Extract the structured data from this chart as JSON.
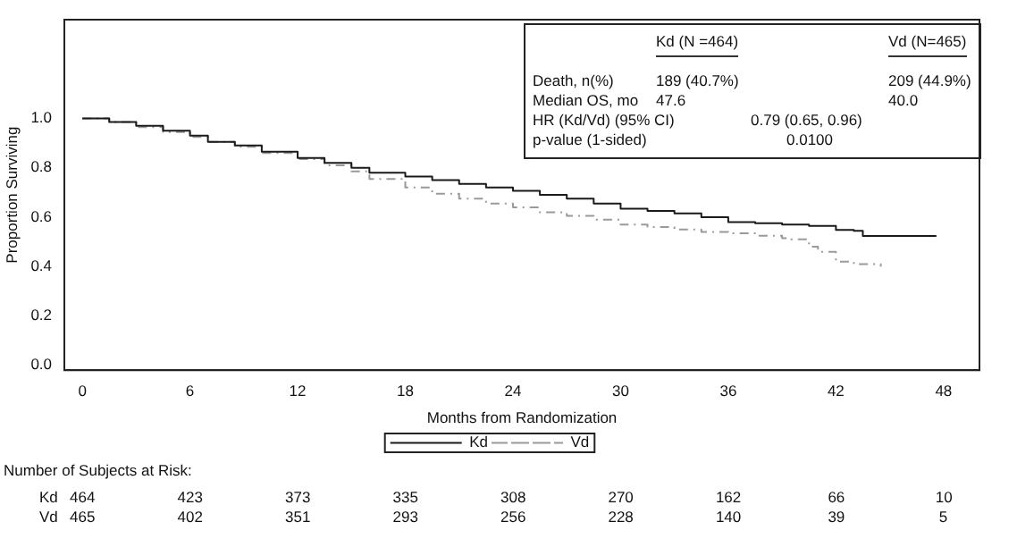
{
  "chart_data": {
    "type": "step",
    "xlabel": "Months from Randomization",
    "ylabel": "Proportion Surviving",
    "xlim": [
      -1,
      50
    ],
    "ylim": [
      -0.02,
      1.4
    ],
    "xticks": [
      0,
      6,
      12,
      18,
      24,
      30,
      36,
      42,
      48
    ],
    "yticks": [
      {
        "value": 0,
        "label": "0.0"
      },
      {
        "value": 0.2,
        "label": "0.2"
      },
      {
        "value": 0.4,
        "label": "0.4"
      },
      {
        "value": 0.6,
        "label": "0.6"
      },
      {
        "value": 0.8,
        "label": "0.8"
      },
      {
        "value": 1,
        "label": "1.0"
      }
    ],
    "grid": false,
    "legend": "bottom",
    "marker": "none",
    "series": [
      {
        "name": "Kd",
        "color": "#1a1a1a",
        "line_style": "solid",
        "x": [
          0,
          1.5,
          3,
          4.5,
          6,
          7,
          8.5,
          10,
          12,
          13.5,
          15,
          16,
          18,
          19.5,
          21,
          22.5,
          24,
          25.5,
          27,
          28.5,
          30,
          31.5,
          33,
          34.5,
          36,
          37.5,
          39,
          40.5,
          42,
          43,
          43.5,
          45,
          46.5,
          47.6
        ],
        "values": [
          1.0,
          0.985,
          0.97,
          0.95,
          0.93,
          0.905,
          0.89,
          0.865,
          0.84,
          0.82,
          0.8,
          0.78,
          0.765,
          0.75,
          0.735,
          0.72,
          0.707,
          0.69,
          0.675,
          0.655,
          0.634,
          0.625,
          0.615,
          0.6,
          0.58,
          0.575,
          0.57,
          0.565,
          0.548,
          0.545,
          0.524,
          0.524,
          0.524,
          0.524
        ]
      },
      {
        "name": "Vd",
        "color": "#9a9a9a",
        "line_style": "dashed",
        "x": [
          0,
          1.5,
          3,
          4.5,
          6,
          7,
          8.5,
          10,
          12,
          13.5,
          15,
          16,
          18,
          19.5,
          21,
          22.5,
          24,
          25.5,
          27,
          28.5,
          30,
          31.5,
          33,
          34.5,
          36,
          37.5,
          39,
          39.5,
          40.5,
          41,
          42,
          43,
          44.5
        ],
        "values": [
          1.0,
          0.985,
          0.965,
          0.945,
          0.925,
          0.905,
          0.885,
          0.86,
          0.835,
          0.81,
          0.785,
          0.755,
          0.72,
          0.695,
          0.675,
          0.655,
          0.64,
          0.62,
          0.605,
          0.59,
          0.57,
          0.56,
          0.55,
          0.54,
          0.535,
          0.525,
          0.515,
          0.51,
          0.48,
          0.46,
          0.42,
          0.41,
          0.4
        ]
      }
    ],
    "annotations": [
      "Kd (N =464)",
      "Vd (N=465)",
      "Death, n(%)",
      "189 (40.7%)",
      "209 (44.9%)",
      "Median OS, mo",
      "47.6",
      "40.0",
      "HR (Kd/Vd) (95% CI)",
      "0.79 (0.65, 0.96)",
      "p-value (1-sided)",
      "0.0100",
      "Number of Subjects at Risk:",
      "Kd",
      "464",
      "423",
      "373",
      "335",
      "308",
      "270",
      "162",
      "66",
      "10",
      "Vd",
      "465",
      "402",
      "351",
      "293",
      "256",
      "228",
      "140",
      "39",
      "5"
    ]
  }
}
